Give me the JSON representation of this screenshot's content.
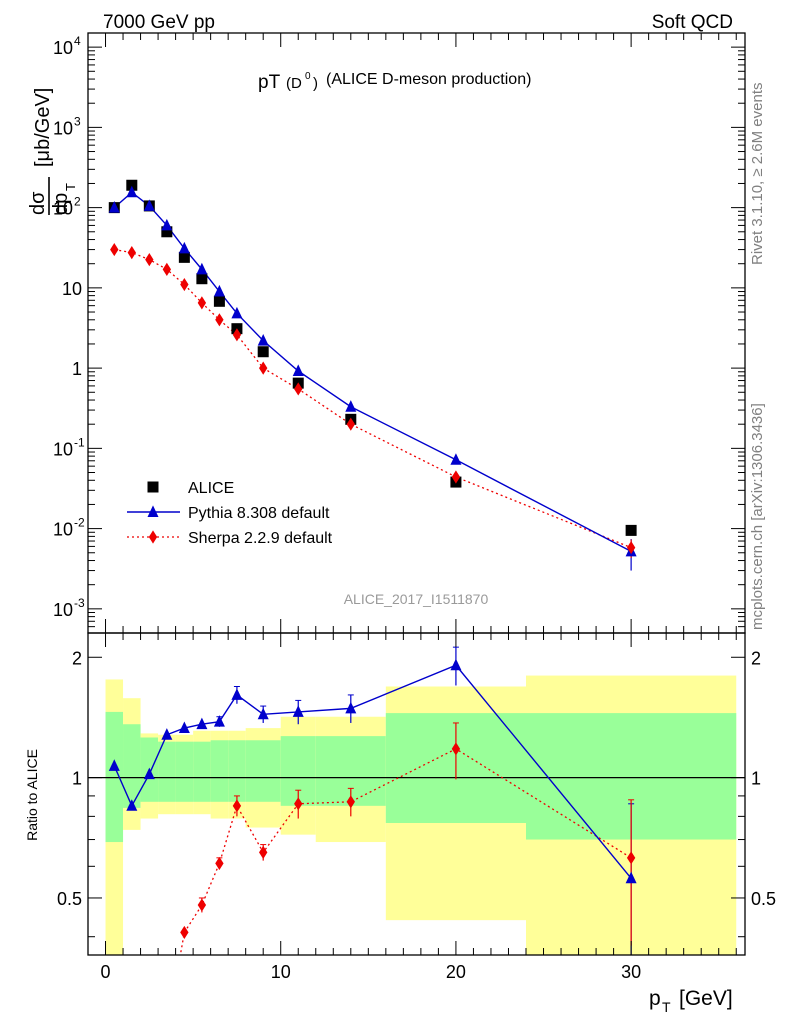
{
  "header": {
    "left": "7000 GeV pp",
    "right": "Soft QCD"
  },
  "side": {
    "rivet": "Rivet 3.1.10, ≥ 2.6M events",
    "site": "mcplots.cern.ch [arXiv:1306.3436]"
  },
  "chart_data": [
    {
      "type": "scatter",
      "title_main": "pT",
      "title_sub": "(D",
      "title_sup": "0",
      "title_close": ")",
      "title_rest": "(ALICE D-meson production)",
      "ylabel_num": "dσ",
      "ylabel_den": "dp",
      "ylabel_den_sub": "T",
      "ylabel_unit": "[μb/GeV]",
      "watermark": "ALICE_2017_I1511870",
      "yscale": "log",
      "xlim": [
        -1,
        36.5
      ],
      "ylim": [
        0.0005,
        15000
      ],
      "y_ticks": [
        {
          "base": "10",
          "exp": "-3",
          "v": 0.001
        },
        {
          "base": "10",
          "exp": "-2",
          "v": 0.01
        },
        {
          "base": "10",
          "exp": "-1",
          "v": 0.1
        },
        {
          "base": "1",
          "exp": "",
          "v": 1
        },
        {
          "base": "10",
          "exp": "",
          "v": 10
        },
        {
          "base": "10",
          "exp": "2",
          "v": 100
        },
        {
          "base": "10",
          "exp": "3",
          "v": 1000
        },
        {
          "base": "10",
          "exp": "4",
          "v": 10000
        }
      ],
      "legend": [
        {
          "label": "ALICE",
          "color": "#000000",
          "marker": "square"
        },
        {
          "label": "Pythia 8.308 default",
          "color": "#0000cc",
          "marker": "triangle"
        },
        {
          "label": "Sherpa 2.2.9 default",
          "color": "#ee0000",
          "marker": "diamond"
        }
      ],
      "legend_position": "lower-left",
      "series": [
        {
          "name": "ALICE",
          "x": [
            0.5,
            1.5,
            2.5,
            3.5,
            4.5,
            5.5,
            6.5,
            7.5,
            9,
            11,
            14,
            20,
            30
          ],
          "y": [
            100,
            190,
            105,
            50,
            24,
            13,
            6.8,
            3.1,
            1.6,
            0.65,
            0.23,
            0.038,
            0.0095
          ]
        },
        {
          "name": "Pythia 8.308 default",
          "x": [
            0.5,
            1.5,
            2.5,
            3.5,
            4.5,
            5.5,
            6.5,
            7.5,
            9,
            11,
            14,
            20,
            30
          ],
          "y": [
            100,
            155,
            105,
            60,
            31,
            17,
            9,
            4.8,
            2.2,
            0.92,
            0.33,
            0.072,
            0.0052
          ],
          "err": [
            0,
            0,
            0,
            0,
            0,
            0,
            0,
            0.3,
            0.15,
            0.07,
            0.03,
            0.009,
            0.0022
          ]
        },
        {
          "name": "Sherpa 2.2.9 default",
          "x": [
            0.5,
            1.5,
            2.5,
            3.5,
            4.5,
            5.5,
            6.5,
            7.5,
            9,
            11,
            14,
            20,
            30
          ],
          "y": [
            30,
            27.5,
            22.5,
            17,
            11,
            6.5,
            4,
            2.6,
            1,
            0.55,
            0.2,
            0.044,
            0.0058
          ],
          "err": [
            0,
            0,
            0,
            0,
            0,
            0,
            0,
            0.15,
            0.06,
            0.04,
            0.015,
            0.005,
            0.0015
          ]
        }
      ]
    },
    {
      "type": "scatter",
      "ylabel": "Ratio to ALICE",
      "xlabel_main": "p",
      "xlabel_sub": "T",
      "xlabel_unit": "[GeV]",
      "xlim": [
        -1,
        36.5
      ],
      "ylim": [
        0.36,
        2.3
      ],
      "x_ticks": [
        "0",
        "10",
        "20",
        "30"
      ],
      "y_ticks": [
        "0.5",
        "1",
        "2"
      ],
      "bands": {
        "edges": [
          0,
          1,
          2,
          3,
          4,
          5,
          6,
          7,
          8,
          10,
          12,
          16,
          24,
          36
        ],
        "green_lo": [
          0.69,
          0.84,
          0.87,
          0.87,
          0.87,
          0.87,
          0.87,
          0.87,
          0.87,
          0.85,
          0.85,
          0.77,
          0.7
        ],
        "green_hi": [
          1.46,
          1.36,
          1.26,
          1.23,
          1.23,
          1.23,
          1.24,
          1.24,
          1.24,
          1.27,
          1.27,
          1.45,
          1.45
        ],
        "yellow_lo": [
          0.3,
          0.74,
          0.79,
          0.81,
          0.81,
          0.81,
          0.79,
          0.79,
          0.75,
          0.72,
          0.69,
          0.44,
          0.3
        ],
        "yellow_hi": [
          1.76,
          1.58,
          1.29,
          1.28,
          1.28,
          1.31,
          1.31,
          1.31,
          1.33,
          1.42,
          1.42,
          1.69,
          1.8
        ]
      },
      "series": [
        {
          "name": "Pythia 8.308 default",
          "x": [
            0.5,
            1.5,
            2.5,
            3.5,
            4.5,
            5.5,
            6.5,
            7.5,
            9,
            11,
            14,
            20,
            30
          ],
          "y": [
            1.07,
            0.85,
            1.02,
            1.28,
            1.33,
            1.36,
            1.38,
            1.61,
            1.44,
            1.46,
            1.49,
            1.91,
            0.56
          ],
          "err": [
            0,
            0,
            0,
            0,
            0,
            0,
            0.04,
            0.08,
            0.07,
            0.1,
            0.12,
            0.21,
            0.3
          ]
        },
        {
          "name": "Sherpa 2.2.9 default",
          "x": [
            4.5,
            5.5,
            6.5,
            7.5,
            9,
            11,
            14,
            20,
            30
          ],
          "y": [
            0.41,
            0.48,
            0.61,
            0.85,
            0.65,
            0.86,
            0.87,
            1.18,
            0.63
          ],
          "err": [
            0,
            0.02,
            0.02,
            0.05,
            0.03,
            0.07,
            0.07,
            0.19,
            0.25
          ]
        }
      ]
    }
  ]
}
